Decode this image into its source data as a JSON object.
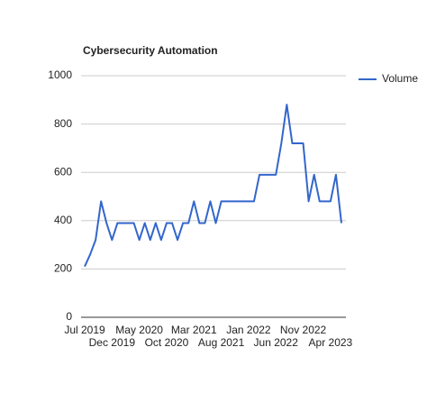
{
  "chart_data": {
    "type": "line",
    "title": "Cybersecurity Automation",
    "categories": [
      "Jul 2019",
      null,
      null,
      null,
      null,
      "Dec 2019",
      null,
      null,
      null,
      null,
      "May 2020",
      null,
      null,
      null,
      null,
      "Oct 2020",
      null,
      null,
      null,
      null,
      "Mar 2021",
      null,
      null,
      null,
      null,
      "Aug 2021",
      null,
      null,
      null,
      null,
      "Jan 2022",
      null,
      null,
      null,
      null,
      "Jun 2022",
      null,
      null,
      null,
      null,
      "Nov 2022",
      null,
      null,
      null,
      null,
      "Apr 2023",
      null,
      null
    ],
    "series": [
      {
        "name": "Volume",
        "color": "#3366cc",
        "values": [
          210,
          260,
          320,
          480,
          390,
          320,
          390,
          390,
          390,
          390,
          320,
          390,
          320,
          390,
          320,
          390,
          390,
          320,
          390,
          390,
          480,
          390,
          390,
          480,
          390,
          480,
          480,
          480,
          480,
          480,
          480,
          480,
          590,
          590,
          590,
          590,
          720,
          880,
          720,
          720,
          720,
          480,
          590,
          480,
          480,
          480,
          590,
          390
        ]
      }
    ],
    "ylim": [
      0,
      1000
    ],
    "yticks": [
      0,
      200,
      400,
      600,
      800,
      1000
    ],
    "grid": true,
    "legend": "right"
  }
}
